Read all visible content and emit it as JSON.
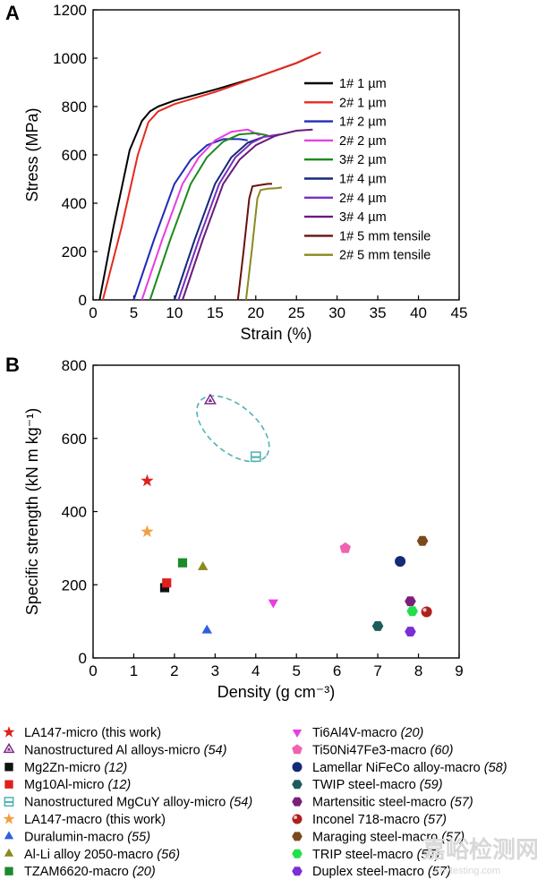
{
  "chart_data": [
    {
      "panel": "A",
      "type": "line",
      "xlabel": "Strain (%)",
      "ylabel": "Stress (MPa)",
      "xlim": [
        0,
        45
      ],
      "ylim": [
        0,
        1200
      ],
      "xticks": [
        0,
        5,
        10,
        15,
        20,
        25,
        30,
        35,
        40,
        45
      ],
      "yticks": [
        0,
        200,
        400,
        600,
        800,
        1000,
        1200
      ],
      "legend_position": "right",
      "series": [
        {
          "name": "1# 1 µm",
          "color": "#000000",
          "x": [
            0.8,
            2.5,
            4.5,
            6.0,
            7.0,
            8.0,
            10,
            15,
            20,
            25,
            27.0
          ],
          "y": [
            0,
            300,
            620,
            740,
            780,
            800,
            825,
            870,
            920,
            980,
            1010
          ]
        },
        {
          "name": "2# 1 µm",
          "color": "#e8281e",
          "x": [
            1.2,
            3.5,
            5.5,
            6.8,
            8.0,
            10,
            15,
            20,
            25,
            28.0
          ],
          "y": [
            0,
            300,
            600,
            735,
            780,
            810,
            860,
            920,
            980,
            1025
          ]
        },
        {
          "name": "1# 2 µm",
          "color": "#1f2bb8",
          "x": [
            5.0,
            7.5,
            10.0,
            12.0,
            14.0,
            16.0,
            18.0,
            19.0
          ],
          "y": [
            0,
            250,
            480,
            580,
            640,
            665,
            665,
            660
          ]
        },
        {
          "name": "2# 2 µm",
          "color": "#e83ee0",
          "x": [
            6.0,
            8.5,
            11.0,
            13.0,
            15.0,
            17.0,
            19.0,
            20.5
          ],
          "y": [
            0,
            250,
            480,
            590,
            660,
            695,
            705,
            680
          ]
        },
        {
          "name": "3# 2 µm",
          "color": "#1d8a1d",
          "x": [
            7.0,
            9.5,
            12.0,
            14.0,
            16.0,
            18.0,
            20.0,
            21.5
          ],
          "y": [
            0,
            250,
            480,
            590,
            655,
            685,
            690,
            680
          ]
        },
        {
          "name": "1# 4 µm",
          "color": "#142a78",
          "x": [
            10.0,
            12.5,
            15.0,
            17.0,
            19.0,
            21.0,
            22.7
          ],
          "y": [
            0,
            250,
            480,
            590,
            650,
            675,
            680
          ]
        },
        {
          "name": "2# 4 µm",
          "color": "#7a2fbf",
          "x": [
            10.5,
            13.0,
            15.5,
            17.5,
            19.5,
            21.0,
            23.0
          ],
          "y": [
            0,
            250,
            480,
            590,
            650,
            675,
            685
          ]
        },
        {
          "name": "3# 4 µm",
          "color": "#6a1b7a",
          "x": [
            11.0,
            13.5,
            16.0,
            18.0,
            20.0,
            22.5,
            25.0,
            27.0
          ],
          "y": [
            0,
            250,
            480,
            580,
            640,
            680,
            700,
            705
          ]
        },
        {
          "name": "1# 5 mm tensile",
          "color": "#6a1010",
          "x": [
            17.8,
            18.5,
            19.2,
            19.6,
            20.5,
            21.5,
            22.0
          ],
          "y": [
            0,
            200,
            420,
            470,
            475,
            480,
            480
          ]
        },
        {
          "name": "2# 5 mm tensile",
          "color": "#8a8a1e",
          "x": [
            18.8,
            19.5,
            20.2,
            20.6,
            21.5,
            22.5,
            23.2
          ],
          "y": [
            0,
            200,
            420,
            455,
            460,
            462,
            465
          ]
        }
      ]
    },
    {
      "panel": "B",
      "type": "scatter",
      "xlabel": "Density (g cm⁻³)",
      "ylabel": "Specific strength (kN m kg⁻¹)",
      "xlim": [
        0,
        9
      ],
      "ylim": [
        0,
        800
      ],
      "xticks": [
        0,
        1,
        2,
        3,
        4,
        5,
        6,
        7,
        8,
        9
      ],
      "yticks": [
        0,
        200,
        400,
        600,
        800
      ],
      "legend_position": "bottom",
      "series": [
        {
          "name": "LA147-micro (this work)",
          "ref": "",
          "marker": "star",
          "color": "#e0201c",
          "x": 1.33,
          "y": 484
        },
        {
          "name": "Nanostructured Al alloys-micro",
          "ref": "(54)",
          "marker": "triangle-open",
          "color": "#7b2a86",
          "x": 2.88,
          "y": 703
        },
        {
          "name": "Mg2Zn-micro",
          "ref": "(12)",
          "marker": "square",
          "color": "#111111",
          "x": 1.76,
          "y": 192
        },
        {
          "name": "Mg10Al-micro",
          "ref": "(12)",
          "marker": "square",
          "color": "#e0201c",
          "x": 1.81,
          "y": 205
        },
        {
          "name": "Nanostructured MgCuY alloy-micro",
          "ref": "(54)",
          "marker": "square-open",
          "color": "#4fb3b0",
          "x": 4.0,
          "y": 550
        },
        {
          "name": "LA147-macro (this work)",
          "ref": "",
          "marker": "star",
          "color": "#f0a040",
          "x": 1.33,
          "y": 345
        },
        {
          "name": "Duralumin-macro",
          "ref": "(55)",
          "marker": "triangle",
          "color": "#2f5fe0",
          "x": 2.8,
          "y": 75
        },
        {
          "name": "Al-Li alloy 2050-macro",
          "ref": "(56)",
          "marker": "triangle",
          "color": "#8a8a1e",
          "x": 2.7,
          "y": 248
        },
        {
          "name": "TZAM6620-macro",
          "ref": "(20)",
          "marker": "square",
          "color": "#1d8a2a",
          "x": 2.2,
          "y": 260
        },
        {
          "name": "Ti6Al4V-macro",
          "ref": "(20)",
          "marker": "triangle-down",
          "color": "#e83ee0",
          "x": 4.43,
          "y": 152
        },
        {
          "name": "Ti50Ni47Fe3-macro",
          "ref": "(60)",
          "marker": "pentagon",
          "color": "#f062b0",
          "x": 6.2,
          "y": 300
        },
        {
          "name": "Lamellar NiFeCo alloy-macro",
          "ref": "(58)",
          "marker": "circle",
          "color": "#142a78",
          "x": 7.55,
          "y": 264
        },
        {
          "name": "TWIP steel-macro",
          "ref": "(59)",
          "marker": "hexagon",
          "color": "#1e5c5c",
          "x": 7.0,
          "y": 87
        },
        {
          "name": "Martensitic steel-macro",
          "ref": "(57)",
          "marker": "hexagon",
          "color": "#7a1f7a",
          "x": 7.8,
          "y": 155
        },
        {
          "name": "Inconel 718-macro",
          "ref": "(57)",
          "marker": "circle-shaded",
          "color": "#b0201c",
          "x": 8.2,
          "y": 126
        },
        {
          "name": "Maraging steel-macro",
          "ref": "(57)",
          "marker": "hexagon",
          "color": "#7a4a1c",
          "x": 8.1,
          "y": 320
        },
        {
          "name": "TRIP steel-macro",
          "ref": "(57)",
          "marker": "hexagon",
          "color": "#22e04a",
          "x": 7.85,
          "y": 128
        },
        {
          "name": "Duplex steel-macro",
          "ref": "(57)",
          "marker": "hexagon",
          "color": "#7a2fd8",
          "x": 7.8,
          "y": 72
        }
      ]
    }
  ],
  "watermark": {
    "line1": "嘉峪检测网",
    "line2": "Anytesting.com"
  }
}
